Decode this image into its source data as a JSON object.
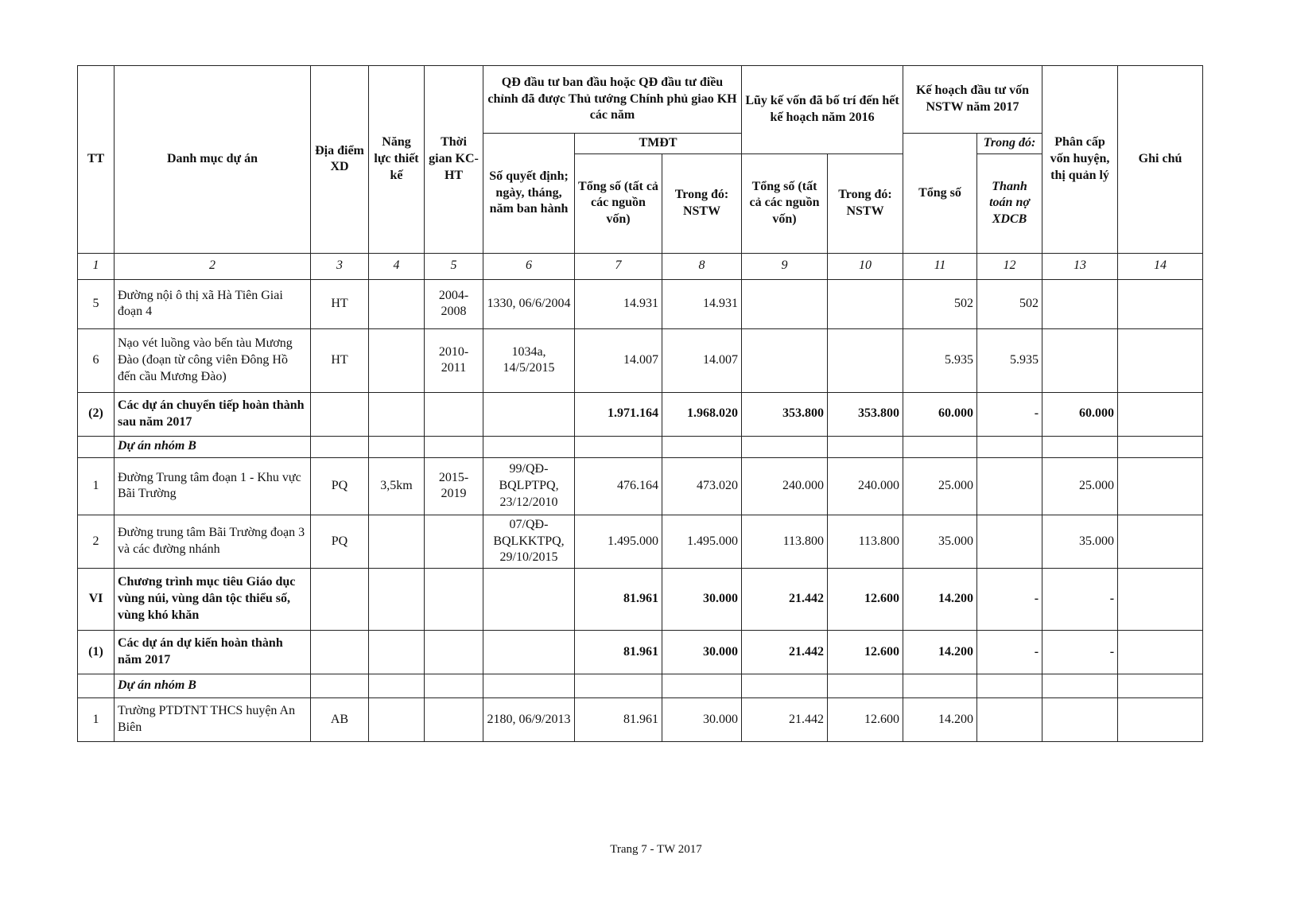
{
  "table": {
    "header": {
      "tt": "TT",
      "name": "Danh mục dự án",
      "location": "Địa điểm XD",
      "capacity": "Năng lực thiết kế",
      "period": "Thời gian KC-HT",
      "decision_group": "QĐ đầu tư ban đầu hoặc QĐ đầu tư điều chỉnh đã được Thủ tướng Chính phủ giao KH các năm",
      "decision_no": "Số quyết định; ngày, tháng, năm ban hành",
      "tmdt": "TMĐT",
      "tmdt_total": "Tổng số (tất cả các nguồn vốn)",
      "tmdt_nstw": "Trong đó: NSTW",
      "accum_group": "Lũy kế vốn đã bố trí đến hết kế hoạch năm 2016",
      "accum_total": "Tổng số (tất cả các nguồn vốn)",
      "accum_nstw": "Trong đó: NSTW",
      "plan_group": "Kế hoạch đầu tư vốn NSTW năm 2017",
      "plan_total": "Tổng số",
      "plan_of_which": "Trong đó:",
      "plan_debt": "Thanh toán nợ XDCB",
      "district": "Phân cấp vốn huyện, thị quản lý",
      "note": "Ghi chú"
    },
    "column_numbers": [
      "1",
      "2",
      "3",
      "4",
      "5",
      "6",
      "7",
      "8",
      "9",
      "10",
      "11",
      "12",
      "13",
      "14"
    ],
    "rows": [
      {
        "style": "normal",
        "cells": [
          "5",
          "Đường nội ô thị xã Hà Tiên Giai đoạn 4",
          "HT",
          null,
          "2004-2008",
          "1330, 06/6/2004",
          "14.931",
          "14.931",
          null,
          null,
          "502",
          "502",
          null,
          null
        ]
      },
      {
        "style": "normal",
        "cells": [
          "6",
          "Nạo vét luồng vào bến tàu Mương Đào (đoạn từ công viên Đông Hồ đến cầu Mương Đào)",
          "HT",
          null,
          "2010-2011",
          "1034a, 14/5/2015",
          "14.007",
          "14.007",
          null,
          null,
          "5.935",
          "5.935",
          null,
          null
        ]
      },
      {
        "style": "bold",
        "cells": [
          "(2)",
          "Các dự án chuyển tiếp hoàn thành sau năm 2017",
          null,
          null,
          null,
          null,
          "1.971.164",
          "1.968.020",
          "353.800",
          "353.800",
          "60.000",
          "-",
          "60.000",
          null
        ]
      },
      {
        "style": "italic",
        "cells": [
          null,
          "Dự án nhóm B",
          null,
          null,
          null,
          null,
          null,
          null,
          null,
          null,
          null,
          null,
          null,
          null
        ]
      },
      {
        "style": "normal",
        "cells": [
          "1",
          "Đường Trung tâm đoạn 1 - Khu vực Bãi Trường",
          "PQ",
          "3,5km",
          "2015-2019",
          "99/QĐ-BQLPTPQ, 23/12/2010",
          "476.164",
          "473.020",
          "240.000",
          "240.000",
          "25.000",
          null,
          "25.000",
          null
        ]
      },
      {
        "style": "normal",
        "cells": [
          "2",
          "Đường trung tâm Bãi Trường đoạn 3 và các đường nhánh",
          "PQ",
          null,
          null,
          "07/QĐ-BQLKKTPQ, 29/10/2015",
          "1.495.000",
          "1.495.000",
          "113.800",
          "113.800",
          "35.000",
          null,
          "35.000",
          null
        ]
      },
      {
        "style": "bold",
        "cells": [
          "VI",
          "Chương trình mục tiêu Giáo dục vùng núi, vùng dân tộc thiểu số, vùng khó khăn",
          null,
          null,
          null,
          null,
          "81.961",
          "30.000",
          "21.442",
          "12.600",
          "14.200",
          "-",
          "-",
          null
        ]
      },
      {
        "style": "bold",
        "cells": [
          "(1)",
          "Các dự án dự kiến hoàn thành năm 2017",
          null,
          null,
          null,
          null,
          "81.961",
          "30.000",
          "21.442",
          "12.600",
          "14.200",
          "-",
          "-",
          null
        ]
      },
      {
        "style": "italic",
        "cells": [
          null,
          "Dự án nhóm B",
          null,
          null,
          null,
          null,
          null,
          null,
          null,
          null,
          null,
          null,
          null,
          null
        ]
      },
      {
        "style": "normal",
        "cells": [
          "1",
          "Trường PTDTNT THCS huyện An Biên",
          "AB",
          null,
          null,
          "2180, 06/9/2013",
          "81.961",
          "30.000",
          "21.442",
          "12.600",
          "14.200",
          null,
          null,
          null
        ]
      }
    ]
  },
  "footer": {
    "page": "Trang 7 - TW 2017"
  }
}
